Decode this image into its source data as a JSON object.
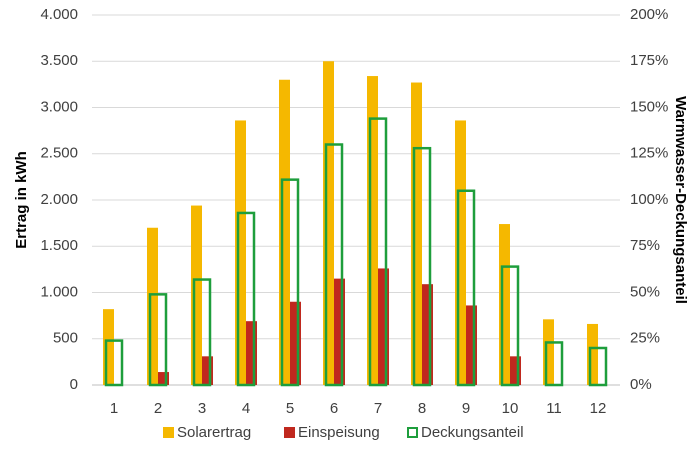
{
  "chart_data": {
    "type": "bar",
    "categories": [
      "1",
      "2",
      "3",
      "4",
      "5",
      "6",
      "7",
      "8",
      "9",
      "10",
      "11",
      "12"
    ],
    "y_label": "Ertrag in kWh",
    "y2_label": "Warmwasser-Deckungsanteil",
    "series": [
      {
        "name": "Solarertrag",
        "color": "#f5b800",
        "values": [
          820,
          1700,
          1940,
          2860,
          3300,
          3500,
          3340,
          3270,
          2860,
          1740,
          710,
          660
        ]
      },
      {
        "name": "Einspeisung",
        "color": "#c0281e",
        "values": [
          0,
          140,
          310,
          690,
          900,
          1150,
          1260,
          1090,
          860,
          310,
          0,
          0
        ]
      },
      {
        "name": "Deckungsanteil",
        "color": "#1e9e3c",
        "axis": "y2",
        "values": [
          24,
          49,
          57,
          93,
          111,
          130,
          144,
          128,
          105,
          64,
          23,
          20
        ]
      }
    ],
    "ylim": [
      0,
      4000
    ],
    "yticks": [
      0,
      {
        "value": 500,
        "label": "500"
      },
      {
        "value": 1000,
        "label": "1.000"
      },
      {
        "value": 1500,
        "label": "1.500"
      },
      {
        "value": 2000,
        "label": "2.000"
      },
      {
        "value": 2500,
        "label": "2.500"
      },
      {
        "value": 3000,
        "label": "3.000"
      },
      {
        "value": 3500,
        "label": "3.500"
      },
      {
        "value": 4000,
        "label": "4.000"
      }
    ],
    "y2lim": [
      0,
      200
    ],
    "y2ticks": [
      {
        "value": 0,
        "label": "0%"
      },
      {
        "value": 25,
        "label": "25%"
      },
      {
        "value": 50,
        "label": "50%"
      },
      {
        "value": 75,
        "label": "75%"
      },
      {
        "value": 100,
        "label": "100%"
      },
      {
        "value": 125,
        "label": "125%"
      },
      {
        "value": 150,
        "label": "150%"
      },
      {
        "value": 175,
        "label": "175%"
      },
      {
        "value": 200,
        "label": "200%"
      }
    ],
    "grid": true,
    "legend": "bottom"
  }
}
